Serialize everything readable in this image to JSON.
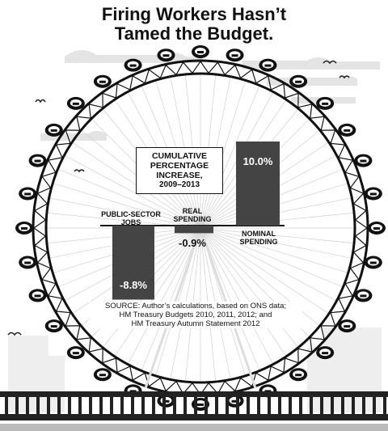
{
  "title": {
    "line1": "Firing Workers Hasn’t",
    "line2": "Tamed the Budget."
  },
  "box": {
    "line1": "CUMULATIVE",
    "line2": "PERCENTAGE",
    "line3": "INCREASE,",
    "line4": "2009–2013"
  },
  "source": {
    "line1": "SOURCE: Author’s calculations, based on ONS data;",
    "line2": "HM Treasury Budgets 2010, 2011, 2012; and",
    "line3": "HM Treasury Autumn Statement 2012"
  },
  "chart_data": {
    "type": "bar",
    "categories": [
      "PUBLIC-SECTOR JOBS",
      "REAL SPENDING",
      "NOMINAL SPENDING"
    ],
    "category_lines": [
      [
        "PUBLIC-SECTOR",
        "JOBS"
      ],
      [
        "REAL",
        "SPENDING"
      ],
      [
        "NOMINAL",
        "SPENDING"
      ]
    ],
    "values": [
      -8.8,
      -0.9,
      10.0
    ],
    "value_labels": [
      "-8.8%",
      "-0.9%",
      "10.0%"
    ],
    "title": "",
    "xlabel": "",
    "ylabel": "",
    "grid": false,
    "bar_color": "#444444"
  },
  "colors": {
    "bar": "#444444",
    "ink": "#111111",
    "cloud": "#e4e4e4",
    "building": "#eeeeee"
  }
}
